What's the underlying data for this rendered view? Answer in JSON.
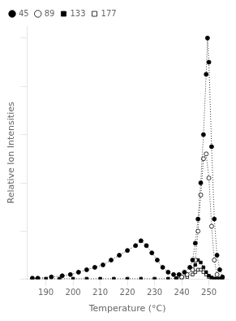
{
  "chart_data": {
    "type": "line",
    "xlabel": "Temperature (°C)",
    "ylabel": "Relative Ion Intensities",
    "xlim": [
      183,
      257
    ],
    "ylim": [
      0,
      105
    ],
    "xticks": [
      190,
      200,
      210,
      220,
      230,
      240,
      250
    ],
    "yticks": [
      0,
      20,
      40,
      60,
      80,
      100
    ],
    "tick_labels": "x",
    "grid": false,
    "legend": "upper left",
    "line_style": "dotted",
    "series": [
      {
        "name": "45",
        "color": "black",
        "marker": "filled-circle",
        "x": [
          185,
          187,
          192,
          196,
          199,
          202,
          205,
          208,
          211,
          214,
          217,
          220,
          223,
          225,
          227,
          229,
          231,
          233,
          235,
          237,
          239,
          241,
          243,
          244,
          245,
          246,
          247,
          248,
          249,
          249.5,
          250,
          251,
          252,
          253,
          254,
          255
        ],
        "values": [
          0.5,
          0.5,
          1,
          1.5,
          2,
          3,
          4,
          5,
          6,
          8,
          10,
          12,
          14,
          16,
          14,
          11,
          8,
          5,
          3,
          2,
          2,
          3,
          5,
          8,
          15,
          25,
          40,
          60,
          85,
          100,
          90,
          55,
          25,
          10,
          4,
          1
        ]
      },
      {
        "name": "89",
        "color": "black",
        "marker": "open-circle",
        "x": [
          240,
          242,
          244,
          245,
          246,
          247,
          248,
          249,
          250,
          251,
          252,
          253
        ],
        "values": [
          1,
          2,
          4,
          8,
          20,
          35,
          50,
          52,
          42,
          22,
          8,
          2
        ]
      },
      {
        "name": "133",
        "color": "black",
        "marker": "filled-square",
        "x": [
          185,
          190,
          195,
          200,
          205,
          210,
          215,
          220,
          225,
          230,
          235,
          238,
          240,
          242,
          244,
          245,
          246,
          247,
          248,
          249,
          250,
          251,
          252,
          253,
          254,
          255
        ],
        "values": [
          0.3,
          0.3,
          0.3,
          0.3,
          0.3,
          0.3,
          0.3,
          0.3,
          0.3,
          0.3,
          0.3,
          0.5,
          1,
          2,
          4,
          6,
          8,
          7,
          5,
          3,
          1.5,
          0.8,
          0.3,
          0.3,
          0.3,
          0.3
        ]
      },
      {
        "name": "177",
        "color": "black",
        "marker": "open-square",
        "x": [
          238,
          240,
          242,
          244,
          245,
          246,
          247,
          248,
          249,
          250,
          251,
          252,
          253,
          254
        ],
        "values": [
          0.3,
          0.5,
          1,
          2,
          3,
          4,
          4,
          3,
          2,
          1,
          0.5,
          0.3,
          0.3,
          0.3
        ]
      }
    ]
  }
}
